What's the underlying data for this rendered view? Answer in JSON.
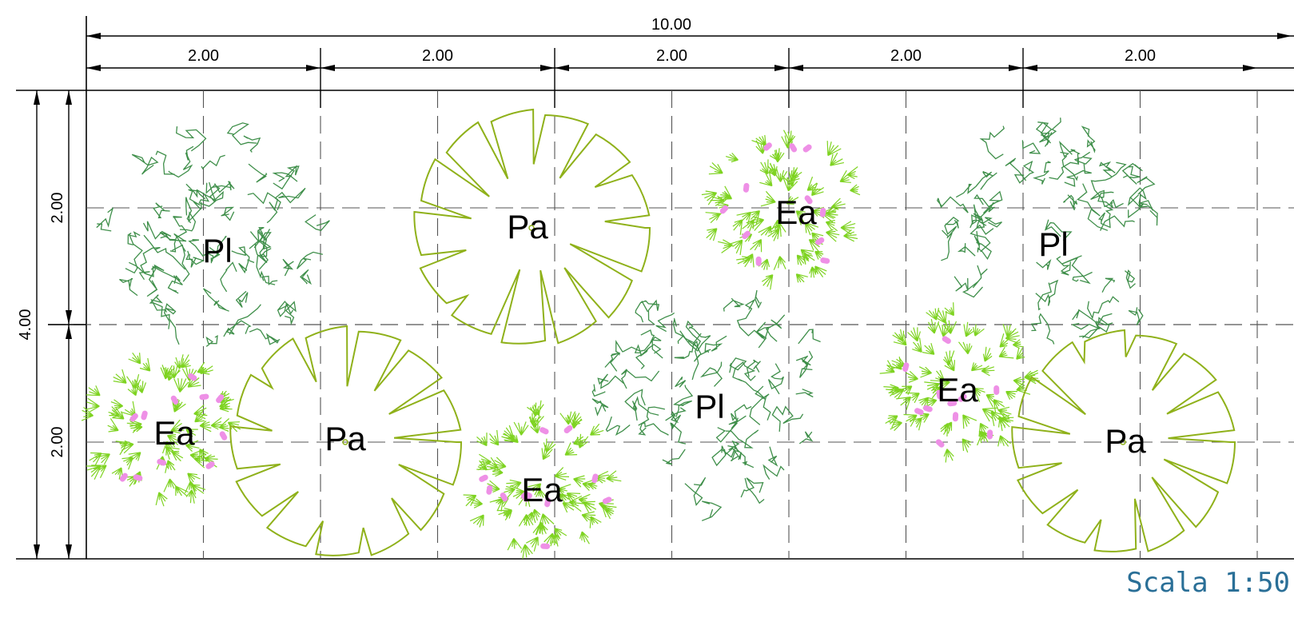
{
  "dimensions": {
    "total_width": "10.00",
    "module_widths": [
      "2.00",
      "2.00",
      "2.00",
      "2.00",
      "2.00"
    ],
    "total_height": "4.00",
    "module_heights": [
      "2.00",
      "2.00"
    ]
  },
  "plants": [
    {
      "code": "Pl",
      "type": "shrub-dense"
    },
    {
      "code": "Pa",
      "type": "star-circle"
    },
    {
      "code": "Ea",
      "type": "flowering"
    },
    {
      "code": "Pl",
      "type": "shrub-dense"
    },
    {
      "code": "Ea",
      "type": "flowering"
    },
    {
      "code": "Pa",
      "type": "star-circle"
    },
    {
      "code": "Ea",
      "type": "flowering"
    },
    {
      "code": "Pl",
      "type": "shrub-dense"
    },
    {
      "code": "Ea",
      "type": "flowering"
    },
    {
      "code": "Pa",
      "type": "star-circle"
    }
  ],
  "scale": "Scala 1:50",
  "colors": {
    "line": "#000000",
    "grid": "#555555",
    "shrub": "#3f8f4a",
    "star": "#8fb11a",
    "flower_leaf": "#7ed321",
    "flower_dot": "#ee90e6",
    "scale_text": "#2a6f97"
  }
}
